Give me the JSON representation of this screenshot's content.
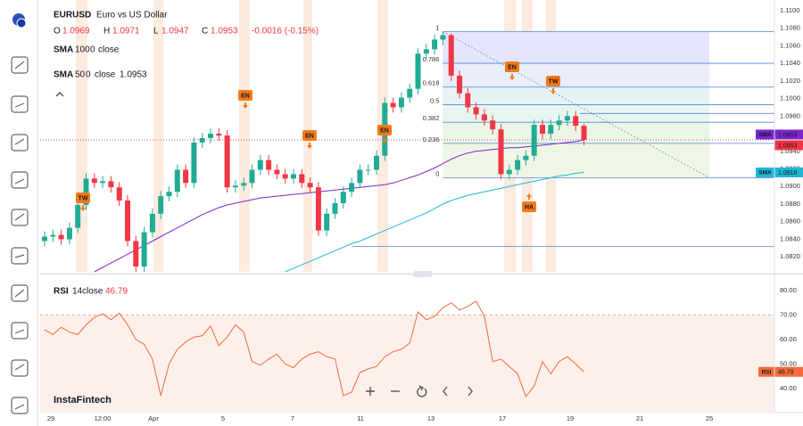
{
  "header": {
    "symbol": "EURUSD",
    "name": "Euro vs US Dollar",
    "ohlc_labels": [
      "O",
      "H",
      "L",
      "C"
    ],
    "change": "-0.0016 (-0.15%)"
  },
  "watermark": "InstaFintech",
  "chart_data": [
    {
      "type": "candlestick",
      "up_color": "#22ab94",
      "down_color": "#f23645",
      "open": [
        1.0838,
        1.0843,
        1.0845,
        1.084,
        1.0853,
        1.0879,
        1.0909,
        1.0904,
        1.0906,
        1.0899,
        1.0884,
        1.0838,
        1.0809,
        1.0848,
        1.0869,
        1.0889,
        1.0894,
        1.0919,
        1.0904,
        1.095,
        1.0955,
        1.096,
        1.0958,
        1.0899,
        1.0901,
        1.0904,
        1.0919,
        1.093,
        1.0919,
        1.0914,
        1.0909,
        1.0914,
        1.0904,
        1.0899,
        1.085,
        1.0869,
        1.0881,
        1.0894,
        1.0904,
        1.0919,
        1.0919,
        1.0935,
        1.0995,
        1.099,
        1.1001,
        1.1011,
        1.1051,
        1.1056,
        1.1067,
        1.1072,
        1.1026,
        1.1006,
        1.099,
        1.0982,
        1.0975,
        1.0965,
        1.0914,
        1.0919,
        1.093,
        1.0935,
        1.097,
        1.096,
        1.097,
        1.0975,
        1.098,
        1.0969
      ],
      "high": [
        1.0849,
        1.0851,
        1.0851,
        1.0859,
        1.0885,
        1.0915,
        1.0915,
        1.0912,
        1.0912,
        1.0905,
        1.089,
        1.0844,
        1.0854,
        1.0875,
        1.0895,
        1.09,
        1.0925,
        1.0925,
        1.0956,
        1.0961,
        1.0966,
        1.0966,
        1.0964,
        1.0907,
        1.091,
        1.0925,
        1.0936,
        1.0936,
        1.0925,
        1.092,
        1.092,
        1.092,
        1.091,
        1.0905,
        1.0875,
        1.0887,
        1.09,
        1.091,
        1.0925,
        1.0925,
        1.0941,
        1.1001,
        1.1001,
        1.1007,
        1.1017,
        1.1057,
        1.1062,
        1.1073,
        1.1076,
        1.1074,
        1.1032,
        1.1012,
        1.0996,
        1.0988,
        1.0981,
        1.0971,
        1.0925,
        1.0936,
        1.0941,
        1.0976,
        1.0976,
        1.0976,
        1.0981,
        1.0986,
        1.0986,
        1.0971
      ],
      "low": [
        1.0832,
        1.0837,
        1.0834,
        1.0834,
        1.0847,
        1.0873,
        1.0898,
        1.0898,
        1.0893,
        1.0878,
        1.0832,
        1.0803,
        1.0803,
        1.0842,
        1.0863,
        1.0883,
        1.0888,
        1.0898,
        1.0898,
        1.0944,
        1.0949,
        1.0952,
        1.0893,
        1.0893,
        1.0895,
        1.0898,
        1.0913,
        1.0913,
        1.0908,
        1.0903,
        1.0903,
        1.0898,
        1.0893,
        1.0844,
        1.0844,
        1.0863,
        1.0875,
        1.0888,
        1.0898,
        1.0913,
        1.0913,
        1.0929,
        1.0984,
        1.0984,
        1.0995,
        1.1005,
        1.1045,
        1.105,
        1.1061,
        1.102,
        1.1,
        1.0984,
        1.0976,
        1.0969,
        1.0959,
        1.0908,
        1.0908,
        1.0913,
        1.0924,
        1.0929,
        1.0954,
        1.0954,
        1.0964,
        1.0969,
        1.0963,
        1.0947
      ],
      "close": [
        1.0843,
        1.0845,
        1.084,
        1.0853,
        1.0879,
        1.0909,
        1.0904,
        1.0906,
        1.0899,
        1.0884,
        1.0838,
        1.0809,
        1.0848,
        1.0869,
        1.0889,
        1.0894,
        1.0919,
        1.0904,
        1.095,
        1.0955,
        1.096,
        1.0958,
        1.0899,
        1.0901,
        1.0904,
        1.0919,
        1.093,
        1.0919,
        1.0914,
        1.0909,
        1.0914,
        1.0904,
        1.0899,
        1.085,
        1.0869,
        1.0881,
        1.0894,
        1.0904,
        1.0919,
        1.0919,
        1.0935,
        1.0995,
        1.099,
        1.1001,
        1.1011,
        1.1051,
        1.1056,
        1.1067,
        1.1072,
        1.1026,
        1.1006,
        1.099,
        1.0982,
        1.0975,
        1.0965,
        1.0914,
        1.0919,
        1.093,
        1.0935,
        1.097,
        1.096,
        1.097,
        1.0975,
        1.098,
        1.0969,
        1.0953
      ],
      "series": [
        {
          "name": "SMA",
          "period": 100,
          "offset": 0,
          "source": "close",
          "color": "#1fb7d4",
          "values": [
            null,
            null,
            null,
            null,
            null,
            null,
            null,
            null,
            null,
            null,
            null,
            null,
            null,
            null,
            null,
            null,
            null,
            null,
            null,
            null,
            null,
            null,
            null,
            null,
            null,
            null,
            null,
            null,
            null,
            1.0803,
            1.0807,
            1.0811,
            1.0815,
            1.0819,
            1.0823,
            1.0827,
            1.0831,
            1.0835,
            1.0838,
            1.0842,
            1.0846,
            1.085,
            1.0854,
            1.0858,
            1.0862,
            1.0866,
            1.087,
            1.0875,
            1.088,
            1.0884,
            1.0887,
            1.089,
            1.0892,
            1.0894,
            1.0896,
            1.0898,
            1.09,
            1.0902,
            1.0904,
            1.0906,
            1.0908,
            1.091,
            1.0912,
            1.0913,
            1.0915,
            1.0916
          ]
        },
        {
          "name": "SMA",
          "period": 50,
          "offset": 0,
          "source": "close",
          "color": "#7b27c9",
          "values": [
            null,
            null,
            null,
            null,
            null,
            null,
            1.0803,
            1.0808,
            1.0813,
            1.0818,
            1.0823,
            1.0828,
            1.0833,
            1.0838,
            1.0843,
            1.0848,
            1.0853,
            1.0858,
            1.0863,
            1.0868,
            1.0872,
            1.0876,
            1.0879,
            1.0881,
            1.0883,
            1.0885,
            1.0887,
            1.0888,
            1.0889,
            1.089,
            1.0891,
            1.0892,
            1.0893,
            1.0894,
            1.0895,
            1.0896,
            1.0897,
            1.0898,
            1.0899,
            1.09,
            1.0901,
            1.0902,
            1.0904,
            1.0907,
            1.091,
            1.0913,
            1.0917,
            1.0921,
            1.0926,
            1.0931,
            1.0935,
            1.0938,
            1.094,
            1.0941,
            1.0942,
            1.0943,
            1.0944,
            1.0944,
            1.0945,
            1.0946,
            1.0947,
            1.0948,
            1.0949,
            1.095,
            1.0951,
            1.0953
          ]
        }
      ],
      "fib": [
        {
          "ratio": 1,
          "price": 1.1076
        },
        {
          "ratio": 0.786,
          "price": 1.104
        },
        {
          "ratio": 0.618,
          "price": 1.1013
        },
        {
          "ratio": 0.5,
          "price": 1.0993
        },
        {
          "ratio": 0.382,
          "price": 1.0973
        },
        {
          "ratio": 0.236,
          "price": 1.0949
        },
        {
          "ratio": 0,
          "price": 1.091
        }
      ],
      "levels": [
        1.0983,
        1.0832
      ],
      "annotations": [
        "TW",
        "EN",
        "EN",
        "EN",
        "EN",
        "TW",
        "HA"
      ],
      "xticks": [
        "29",
        "12:00",
        "Apr",
        "5",
        "7",
        "11",
        "13",
        "17",
        "19",
        "21",
        "25"
      ],
      "ylim": [
        1.0803,
        1.1112
      ],
      "yticks": [
        {
          "value": 1.11,
          "label": "1.1100"
        },
        {
          "value": 1.108,
          "label": "1.1080"
        },
        {
          "value": 1.106,
          "label": "1.1060"
        },
        {
          "value": 1.104,
          "label": "1.1040"
        },
        {
          "value": 1.102,
          "label": "1.1020"
        },
        {
          "value": 1.1,
          "label": "1.1000"
        },
        {
          "value": 1.098,
          "label": "1.0980"
        },
        {
          "value": 1.096,
          "label": "1.0960"
        },
        {
          "value": 1.094,
          "label": "1.0940"
        },
        {
          "value": 1.092,
          "label": "1.0920"
        },
        {
          "value": 1.09,
          "label": "1.0900"
        },
        {
          "value": 1.088,
          "label": "1.0880"
        },
        {
          "value": 1.086,
          "label": "1.0860"
        },
        {
          "value": 1.084,
          "label": "1.0840"
        },
        {
          "value": 1.082,
          "label": "1.0820"
        }
      ]
    },
    {
      "type": "line",
      "name": "RSI",
      "period": 14,
      "source": "close",
      "color": "#f26b3a",
      "values": [
        64,
        62,
        65,
        63,
        62,
        66,
        69,
        70.5,
        68,
        70.8,
        66,
        60,
        58,
        52,
        37,
        50,
        56,
        59,
        61,
        61.5,
        65.5,
        57.5,
        61,
        66,
        63,
        51,
        49.5,
        52,
        54,
        50,
        48.5,
        52,
        54,
        55,
        53,
        52,
        37,
        38.5,
        46.5,
        48,
        49,
        53,
        55,
        56,
        58.5,
        71.3,
        68,
        69.5,
        73,
        75,
        72,
        73.5,
        75.6,
        69.5,
        51,
        52,
        49,
        46,
        36.7,
        41,
        51,
        46,
        51,
        53,
        50,
        46.79
      ],
      "upper_level": 70,
      "ylim": [
        30.5,
        85.8
      ],
      "yticks": [
        {
          "value": 80,
          "label": "80.00"
        },
        {
          "value": 70,
          "label": "70.00"
        },
        {
          "value": 60,
          "label": "60.00"
        },
        {
          "value": 50,
          "label": "50.00"
        },
        {
          "value": 40,
          "label": "40.00"
        }
      ]
    }
  ]
}
